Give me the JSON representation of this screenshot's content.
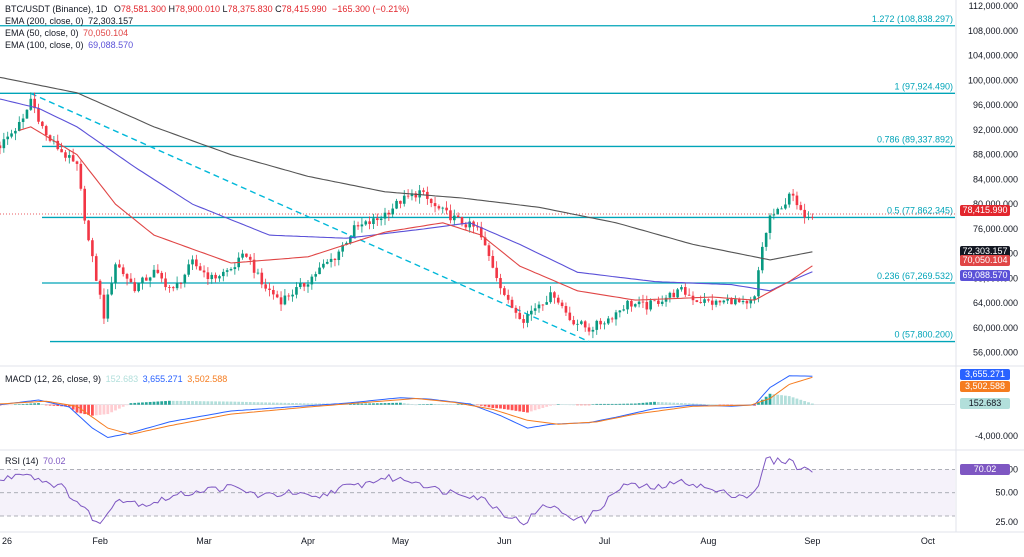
{
  "header": {
    "symbol": "BTC/USDT (Binance), 1D",
    "o_label": "O",
    "o": "78,581.300",
    "h_label": "H",
    "h": "78,900.010",
    "l_label": "L",
    "l": "78,375.830",
    "c_label": "C",
    "c": "78,415.990",
    "change": "−165.300 (−0.21%)"
  },
  "indicators": [
    {
      "label": "EMA (200, close, 0)",
      "value": "72,303.157",
      "color": "#131722"
    },
    {
      "label": "EMA (50, close, 0)",
      "value": "70,050.104",
      "color": "#e04646"
    },
    {
      "label": "EMA (100, close, 0)",
      "value": "69,088.570",
      "color": "#5b51d8"
    }
  ],
  "macd_legend": {
    "label": "MACD (12, 26, close, 9)",
    "hist": "152.683",
    "macd": "3,655.271",
    "signal": "3,502.588"
  },
  "rsi_legend": {
    "label": "RSI (14)",
    "value": "70.02"
  },
  "price_tags": [
    {
      "value": "78,415.990",
      "price": 78416,
      "color": "#e2262d"
    },
    {
      "value": "72,303.157",
      "price": 72303,
      "color": "#131722"
    },
    {
      "value": "70,050.104",
      "price": 70050,
      "color": "#e04646"
    },
    {
      "value": "69,088.570",
      "price": 69089,
      "color": "#5b51d8"
    }
  ],
  "macd_tags": [
    {
      "value": "3,655.271",
      "color": "#2962ff"
    },
    {
      "value": "3,502.588",
      "color": "#f57c1f"
    },
    {
      "value": "152.683",
      "color": "#b2dfdb"
    }
  ],
  "rsi_tag": {
    "value": "70.02",
    "color": "#7e57c2"
  },
  "colors": {
    "up": "#089981",
    "down": "#f23645",
    "fib": "#00a4b8",
    "trend": "#00b8d9",
    "ema200": "#555555",
    "ema50": "#e04646",
    "ema100": "#5b51d8",
    "macd": "#2962ff",
    "signal": "#f57c1f",
    "rsi": "#7e57c2"
  },
  "chart_data": [
    {
      "type": "line",
      "title": "BTC/USDT (Binance), 1D",
      "x_labels": [
        "26",
        "Feb",
        "Mar",
        "Apr",
        "May",
        "Jun",
        "Jul",
        "Aug",
        "Sep",
        "Oct"
      ],
      "y_ticks": [
        56000,
        60000,
        64000,
        68000,
        72000,
        76000,
        80000,
        84000,
        88000,
        92000,
        96000,
        100000,
        104000,
        108000,
        112000
      ],
      "y_tick_labels": [
        "56,000.000",
        "60,000.000",
        "64,000.000",
        "68,000.000",
        "72,000.000",
        "76,000.000",
        "80,000.000",
        "84,000.000",
        "88,000.000",
        "92,000.000",
        "96,000.000",
        "100,000.000",
        "104,000.000",
        "108,000.000",
        "112,000.000"
      ],
      "ylim": [
        54500,
        113000
      ],
      "fib_levels": [
        {
          "ratio": "1.272",
          "price": 108838.297,
          "label": "1.272 (108,838.297)"
        },
        {
          "ratio": "1",
          "price": 97924.49,
          "label": "1 (97,924.490)"
        },
        {
          "ratio": "0.786",
          "price": 89337.892,
          "label": "0.786 (89,337.892)"
        },
        {
          "ratio": "0.5",
          "price": 77862.345,
          "label": "0.5 (77,862.345)"
        },
        {
          "ratio": "0.236",
          "price": 67269.532,
          "label": "0.236 (67,269.532)"
        },
        {
          "ratio": "0",
          "price": 57800.2,
          "label": "0 (57,800.200)"
        }
      ],
      "trendline": {
        "from_day": 8,
        "from_price": 97900,
        "to_day": 153,
        "to_price": 57800
      },
      "close_anchors": [
        [
          0,
          89500
        ],
        [
          6,
          93500
        ],
        [
          8,
          97000
        ],
        [
          12,
          91000
        ],
        [
          16,
          88500
        ],
        [
          20,
          86000
        ],
        [
          23,
          74000
        ],
        [
          27,
          62000
        ],
        [
          30,
          70500
        ],
        [
          35,
          66500
        ],
        [
          40,
          69000
        ],
        [
          45,
          66000
        ],
        [
          50,
          70500
        ],
        [
          55,
          68000
        ],
        [
          60,
          69500
        ],
        [
          64,
          72000
        ],
        [
          68,
          67000
        ],
        [
          73,
          64500
        ],
        [
          79,
          67000
        ],
        [
          83,
          69500
        ],
        [
          87,
          71500
        ],
        [
          92,
          76000
        ],
        [
          98,
          77500
        ],
        [
          104,
          80500
        ],
        [
          109,
          82000
        ],
        [
          113,
          79500
        ],
        [
          120,
          77000
        ],
        [
          124,
          76000
        ],
        [
          128,
          70000
        ],
        [
          132,
          64000
        ],
        [
          136,
          61500
        ],
        [
          140,
          64000
        ],
        [
          144,
          65500
        ],
        [
          148,
          61500
        ],
        [
          153,
          59800
        ],
        [
          158,
          61500
        ],
        [
          163,
          64000
        ],
        [
          168,
          63500
        ],
        [
          173,
          65000
        ],
        [
          177,
          66000
        ],
        [
          181,
          64500
        ],
        [
          186,
          64000
        ],
        [
          190,
          64500
        ],
        [
          194,
          63500
        ],
        [
          196,
          64800
        ],
        [
          198,
          73000
        ],
        [
          200,
          78000
        ],
        [
          203,
          79000
        ],
        [
          205,
          82000
        ],
        [
          208,
          78500
        ],
        [
          211,
          78416
        ]
      ],
      "ema200_anchors": [
        [
          0,
          100500
        ],
        [
          20,
          98000
        ],
        [
          40,
          92500
        ],
        [
          60,
          88000
        ],
        [
          80,
          84500
        ],
        [
          100,
          82000
        ],
        [
          120,
          81000
        ],
        [
          140,
          79500
        ],
        [
          160,
          77000
        ],
        [
          180,
          73500
        ],
        [
          200,
          71000
        ],
        [
          211,
          72303
        ]
      ],
      "ema50_anchors": [
        [
          0,
          91000
        ],
        [
          8,
          92500
        ],
        [
          20,
          88000
        ],
        [
          30,
          80000
        ],
        [
          40,
          75000
        ],
        [
          60,
          70500
        ],
        [
          80,
          71500
        ],
        [
          100,
          75500
        ],
        [
          115,
          77000
        ],
        [
          125,
          75000
        ],
        [
          135,
          70000
        ],
        [
          150,
          66000
        ],
        [
          165,
          64500
        ],
        [
          185,
          65000
        ],
        [
          196,
          64500
        ],
        [
          205,
          67500
        ],
        [
          211,
          70050
        ]
      ],
      "ema100_anchors": [
        [
          0,
          97000
        ],
        [
          10,
          95500
        ],
        [
          20,
          92500
        ],
        [
          35,
          86000
        ],
        [
          50,
          80000
        ],
        [
          70,
          75000
        ],
        [
          90,
          74500
        ],
        [
          110,
          76000
        ],
        [
          122,
          77000
        ],
        [
          135,
          73500
        ],
        [
          150,
          69000
        ],
        [
          170,
          67500
        ],
        [
          190,
          67000
        ],
        [
          200,
          66000
        ],
        [
          205,
          67500
        ],
        [
          211,
          69089
        ]
      ]
    },
    {
      "type": "bar",
      "title": "MACD (12, 26, close, 9)",
      "series": [
        {
          "name": "MACD"
        },
        {
          "name": "Signal"
        },
        {
          "name": "Histogram"
        }
      ],
      "y_ticks": [
        -4000
      ],
      "y_tick_labels": [
        "-4,000.000"
      ],
      "ylim": [
        -5800,
        4700
      ],
      "macd_anchors": [
        [
          0,
          0
        ],
        [
          10,
          600
        ],
        [
          18,
          -300
        ],
        [
          24,
          -3000
        ],
        [
          28,
          -4200
        ],
        [
          34,
          -3600
        ],
        [
          44,
          -2200
        ],
        [
          60,
          -800
        ],
        [
          75,
          -300
        ],
        [
          90,
          200
        ],
        [
          104,
          900
        ],
        [
          112,
          700
        ],
        [
          122,
          100
        ],
        [
          130,
          -1400
        ],
        [
          137,
          -3000
        ],
        [
          143,
          -2500
        ],
        [
          153,
          -2300
        ],
        [
          160,
          -1600
        ],
        [
          170,
          -500
        ],
        [
          180,
          -50
        ],
        [
          190,
          -200
        ],
        [
          196,
          0
        ],
        [
          200,
          2200
        ],
        [
          205,
          3700
        ],
        [
          211,
          3655
        ]
      ],
      "signal_anchors": [
        [
          0,
          100
        ],
        [
          12,
          450
        ],
        [
          20,
          -200
        ],
        [
          28,
          -3000
        ],
        [
          34,
          -3800
        ],
        [
          44,
          -2700
        ],
        [
          60,
          -1200
        ],
        [
          80,
          -300
        ],
        [
          95,
          300
        ],
        [
          108,
          800
        ],
        [
          118,
          300
        ],
        [
          128,
          -600
        ],
        [
          137,
          -2000
        ],
        [
          145,
          -2500
        ],
        [
          155,
          -2200
        ],
        [
          165,
          -1200
        ],
        [
          180,
          -200
        ],
        [
          195,
          -50
        ],
        [
          200,
          800
        ],
        [
          205,
          2600
        ],
        [
          211,
          3503
        ]
      ],
      "last_histogram": 152.683
    },
    {
      "type": "line",
      "title": "RSI (14)",
      "y_ticks": [
        25,
        50,
        70
      ],
      "y_tick_labels": [
        "25.00",
        "50.00",
        "70.00"
      ],
      "ylim": [
        18,
        85
      ],
      "bands": [
        30,
        50,
        70
      ],
      "rsi_anchors": [
        [
          0,
          60
        ],
        [
          6,
          68
        ],
        [
          10,
          62
        ],
        [
          16,
          55
        ],
        [
          22,
          36
        ],
        [
          26,
          22
        ],
        [
          30,
          45
        ],
        [
          38,
          40
        ],
        [
          45,
          47
        ],
        [
          52,
          52
        ],
        [
          60,
          55
        ],
        [
          68,
          47
        ],
        [
          75,
          50
        ],
        [
          82,
          45
        ],
        [
          88,
          54
        ],
        [
          94,
          57
        ],
        [
          100,
          63
        ],
        [
          108,
          60
        ],
        [
          114,
          52
        ],
        [
          120,
          50
        ],
        [
          126,
          44
        ],
        [
          131,
          32
        ],
        [
          136,
          24
        ],
        [
          142,
          40
        ],
        [
          148,
          30
        ],
        [
          152,
          26
        ],
        [
          156,
          38
        ],
        [
          162,
          57
        ],
        [
          170,
          54
        ],
        [
          178,
          60
        ],
        [
          186,
          51
        ],
        [
          194,
          47
        ],
        [
          197,
          54
        ],
        [
          199,
          80
        ],
        [
          201,
          77
        ],
        [
          205,
          78
        ],
        [
          208,
          70
        ],
        [
          211,
          70
        ]
      ],
      "last": 70.02
    }
  ]
}
